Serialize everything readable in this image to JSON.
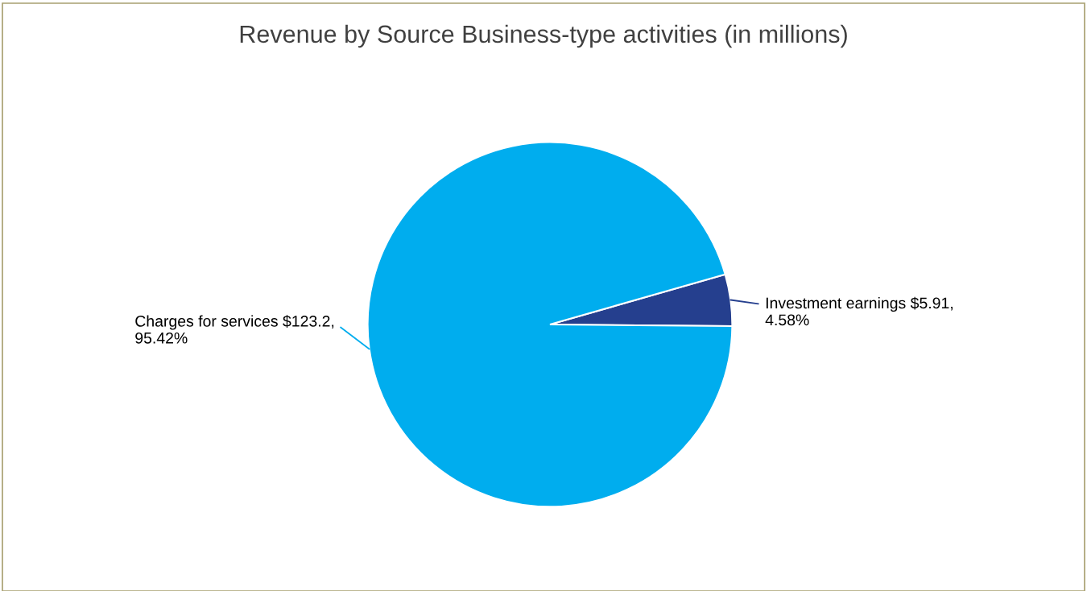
{
  "chart_data": {
    "type": "pie",
    "title": "Revenue by Source Business-type activities (in millions)",
    "categories": [
      "Investment earnings",
      "Charges for services"
    ],
    "values": [
      5.91,
      123.2
    ],
    "value_labels": [
      "$5.91, 4.58%",
      "$123.2, 95.42%"
    ],
    "colors": [
      "#253f8e",
      "#00adee"
    ],
    "legend": false
  }
}
